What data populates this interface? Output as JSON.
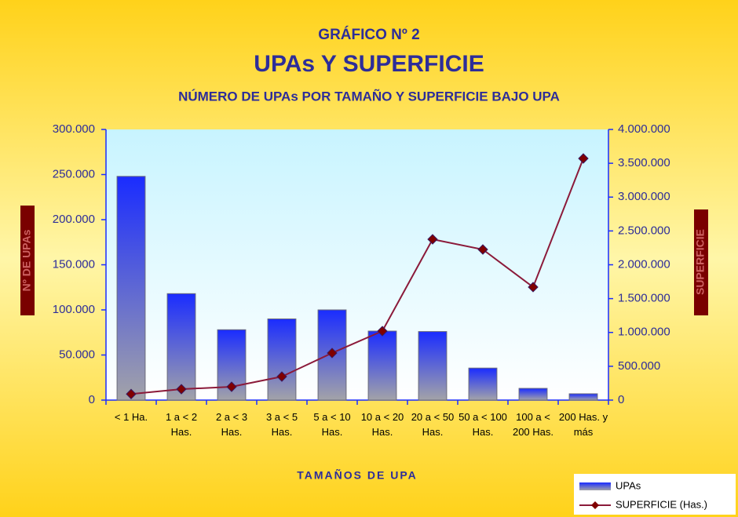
{
  "chart_data": {
    "type": "bar",
    "title": "GRÁFICO Nº  2",
    "subtitle": "UPAs Y SUPERFICIE",
    "subtitle2": "NÚMERO DE UPAs POR TAMAÑO Y SUPERFICIE BAJO UPA",
    "x_label": "TAMAÑOS DE UPA",
    "y_label": "Nº DE UPAs",
    "y2_label": "SUPERFICIE",
    "categories": [
      "< 1 Ha.",
      "1 a < 2 Has.",
      "2 a < 3 Has.",
      "3 a < 5 Has.",
      "5 a < 10 Has.",
      "10 a < 20 Has.",
      "20 a < 50 Has.",
      "50 a < 100 Has.",
      "100 a < 200 Has.",
      "200 Has. y más"
    ],
    "series": [
      {
        "name": "UPAs",
        "type": "bar",
        "color": "#1a2cff",
        "values": [
          248000,
          118000,
          78000,
          90000,
          100000,
          76500,
          76000,
          35500,
          13000,
          7000
        ]
      },
      {
        "name": "SUPERFICIE (Has.)",
        "type": "line",
        "axis": "y2",
        "color": "#8b1a3a",
        "marker_color": "#800000",
        "values": [
          90000,
          162000,
          197000,
          348000,
          696000,
          1020000,
          2377000,
          2226000,
          1670000,
          3571000
        ]
      }
    ],
    "ylim": [
      0,
      300000
    ],
    "yticks": [
      0,
      {
        "value": 50000,
        "label": "50.000"
      },
      {
        "value": 100000,
        "label": "100.000"
      },
      {
        "value": 150000,
        "label": "150.000"
      },
      {
        "value": 200000,
        "label": "200.000"
      },
      {
        "value": 250000,
        "label": "250.000"
      },
      {
        "value": 300000,
        "label": "300.000"
      }
    ],
    "y2lim": [
      0,
      4000000
    ],
    "y2ticks": [
      0,
      {
        "value": 500000,
        "label": "500.000"
      },
      {
        "value": 1000000,
        "label": "1.000.000"
      },
      {
        "value": 1500000,
        "label": "1.500.000"
      },
      {
        "value": 2000000,
        "label": "2.000.000"
      },
      {
        "value": 2500000,
        "label": "2.500.000"
      },
      {
        "value": 3000000,
        "label": "3.000.000"
      },
      {
        "value": 3500000,
        "label": "3.500.000"
      },
      {
        "value": 4000000,
        "label": "4.000.000"
      }
    ],
    "legend": "bottom-right"
  }
}
